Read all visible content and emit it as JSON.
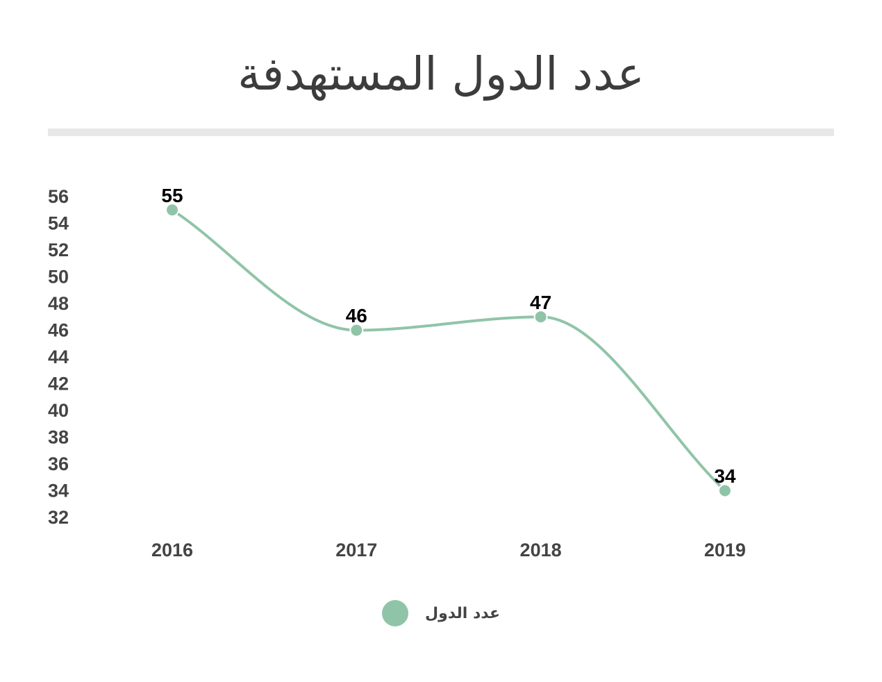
{
  "colors": {
    "series": "#90c4a8",
    "axis_text": "#444444",
    "label_text": "#000000",
    "divider": "#e8e8e8"
  },
  "chart_data": {
    "type": "line",
    "title": "عدد الدول المستهدفة",
    "x": [
      "2016",
      "2017",
      "2018",
      "2019"
    ],
    "series": [
      {
        "name": "عدد الدول",
        "values": [
          55,
          46,
          47,
          34
        ]
      }
    ],
    "yticks": [
      32,
      34,
      36,
      38,
      40,
      42,
      44,
      46,
      48,
      50,
      52,
      54,
      56
    ],
    "ylim": [
      32,
      56
    ],
    "grid": false,
    "smooth": true,
    "legend_position": "bottom-center",
    "data_labels": true
  }
}
